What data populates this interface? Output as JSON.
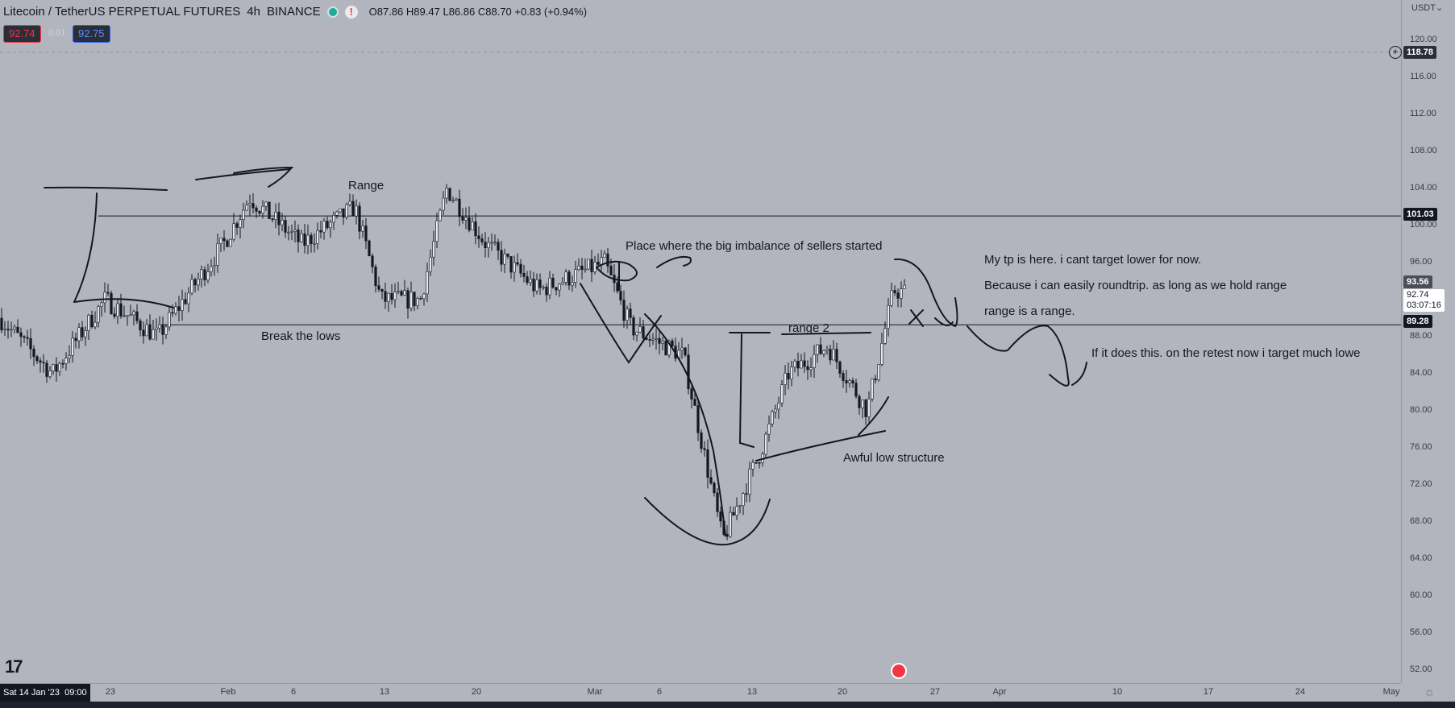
{
  "header": {
    "symbol": "Litecoin / TetherUS PERPETUAL FUTURES",
    "interval": "4h",
    "exchange": "BINANCE",
    "open": "O87.86",
    "high": "H89.47",
    "low": "L86.86",
    "close": "C88.70",
    "change": "+0.83 (+0.94%)",
    "bid": "92.74",
    "spread": "0.01",
    "ask": "92.75",
    "status_icon": "exclamation-icon"
  },
  "colors": {
    "background": "#b2b5be",
    "bid": "#f23645",
    "ask": "#2962ff",
    "text": "#131722"
  },
  "y_axis": {
    "currency": "USDT",
    "ticks": [
      "120.00",
      "116.00",
      "112.00",
      "108.00",
      "104.00",
      "100.00",
      "96.00",
      "92.00",
      "88.00",
      "84.00",
      "80.00",
      "76.00",
      "72.00",
      "68.00",
      "64.00",
      "60.00",
      "56.00",
      "52.00"
    ],
    "labels": {
      "alert": "118.78",
      "level_high": "101.03",
      "current": "93.56",
      "last": "92.74",
      "countdown": "03:07:16",
      "level_low": "89.28"
    }
  },
  "x_axis": {
    "cursor_date": "Sat 14 Jan '23",
    "cursor_time": "09:00",
    "ticks": [
      "23",
      "Feb",
      "6",
      "13",
      "20",
      "Mar",
      "6",
      "13",
      "20",
      "27",
      "Apr",
      "10",
      "17",
      "24",
      "May"
    ]
  },
  "annotations": {
    "range": "Range",
    "break_lows": "Break the lows",
    "imbalance": "Place where the big imbalance of sellers started",
    "range2": "range 2",
    "awful": "Awful low structure",
    "tp": "My tp is here. i cant target lower for now.",
    "roundtrip": "Because i can easily roundtrip. as long as we hold range",
    "range_is": "range is a range.",
    "retest": "If it does this. on the retest now i target much lowe"
  },
  "chart_data": {
    "type": "candlestick",
    "levels": [
      101.03,
      89.28
    ],
    "price_path": [
      {
        "x": "Jan 14",
        "y": 90
      },
      {
        "x": "Jan 18",
        "y": 84
      },
      {
        "x": "Jan 22",
        "y": 92
      },
      {
        "x": "Jan 26",
        "y": 88
      },
      {
        "x": "Jan 31",
        "y": 98
      },
      {
        "x": "Feb 2",
        "y": 103
      },
      {
        "x": "Feb 6",
        "y": 98
      },
      {
        "x": "Feb 10",
        "y": 102
      },
      {
        "x": "Feb 12",
        "y": 92
      },
      {
        "x": "Feb 15",
        "y": 92
      },
      {
        "x": "Feb 17",
        "y": 104
      },
      {
        "x": "Feb 20",
        "y": 98
      },
      {
        "x": "Feb 24",
        "y": 93
      },
      {
        "x": "Mar 1",
        "y": 96
      },
      {
        "x": "Mar 3",
        "y": 89
      },
      {
        "x": "Mar 7",
        "y": 86
      },
      {
        "x": "Mar 10",
        "y": 66
      },
      {
        "x": "Mar 13",
        "y": 76
      },
      {
        "x": "Mar 15",
        "y": 84
      },
      {
        "x": "Mar 18",
        "y": 87
      },
      {
        "x": "Mar 21",
        "y": 80
      },
      {
        "x": "Mar 23",
        "y": 93
      },
      {
        "x": "Mar 24",
        "y": 92.74
      }
    ]
  }
}
